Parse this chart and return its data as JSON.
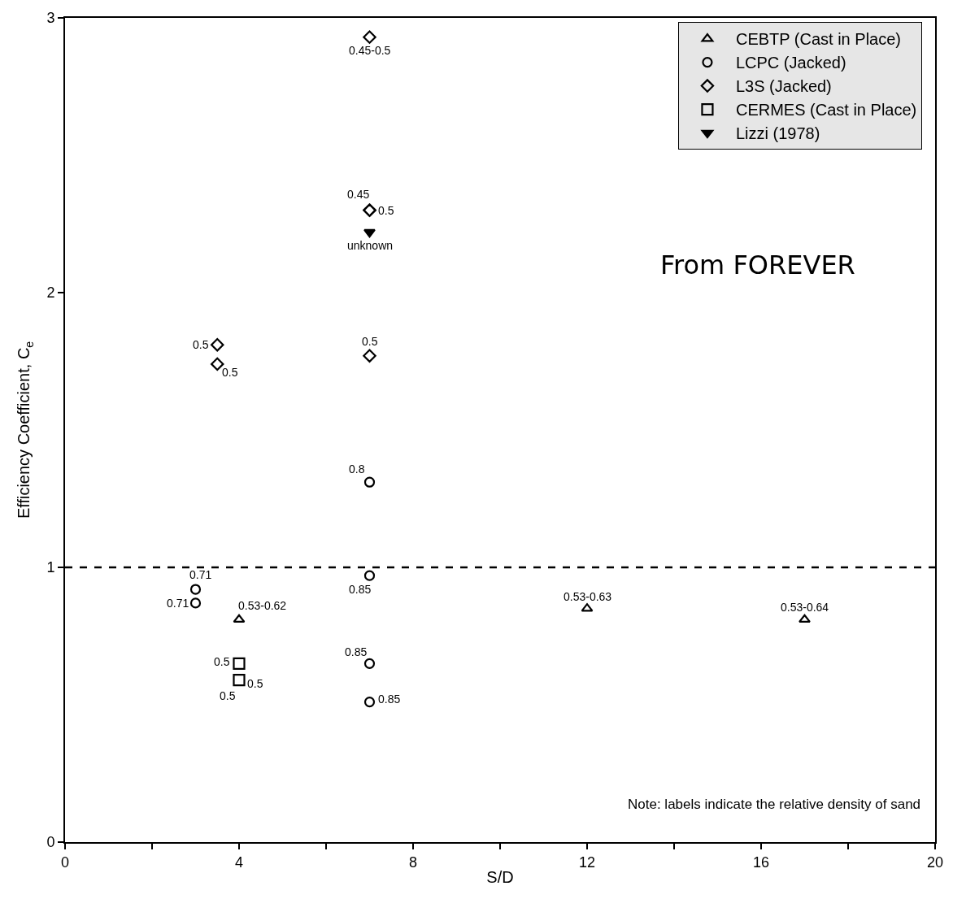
{
  "chart_data": {
    "type": "scatter",
    "xlabel": "S/D",
    "ylabel": "Efficiency Coefficient, C$_{e}$",
    "xlim": [
      0,
      20
    ],
    "ylim": [
      0,
      3
    ],
    "xticks": [
      0,
      {
        "value": 2,
        "label": null
      },
      4,
      {
        "value": 6,
        "label": null
      },
      8,
      {
        "value": 10,
        "label": null
      },
      12,
      {
        "value": 14,
        "label": null
      },
      16,
      {
        "value": 18,
        "label": null
      },
      20
    ],
    "yticks": [
      0,
      1,
      2,
      3
    ],
    "legend": "top right",
    "series": [
      {
        "name": "CEBTP (Cast in Place)",
        "color": "#000000",
        "marker": "triangle",
        "x": [
          4,
          12,
          17
        ],
        "values": [
          0.81,
          0.85,
          0.81
        ]
      },
      {
        "name": "LCPC (Jacked)",
        "color": "#000000",
        "marker": "circle",
        "x": [
          3,
          3,
          7,
          7,
          7,
          7
        ],
        "values": [
          0.92,
          0.87,
          1.31,
          0.97,
          0.65,
          0.51
        ]
      },
      {
        "name": "L3S (Jacked)",
        "color": "#000000",
        "marker": "diamond",
        "x": [
          7,
          7,
          7,
          3.5,
          3.5,
          7
        ],
        "values": [
          2.93,
          2.3,
          2.3,
          1.81,
          1.74,
          1.77
        ]
      },
      {
        "name": "CERMES (Cast in Place)",
        "color": "#000000",
        "marker": "square",
        "x": [
          4,
          4
        ],
        "values": [
          0.65,
          0.59
        ]
      },
      {
        "name": "Lizzi (1978)",
        "color": "#000000",
        "marker": "triangle-down",
        "x": [
          7
        ],
        "values": [
          2.22
        ]
      }
    ],
    "ref_lines": [
      {
        "axis": "y",
        "value": 1,
        "color": "#000000",
        "line_style": "dashed"
      }
    ],
    "annotations": [
      {
        "text": "0.45-0.5",
        "x": 7,
        "y": 2.93
      },
      {
        "text": "0.45",
        "x": 7,
        "y": 2.3
      },
      {
        "text": "0.5",
        "x": 7,
        "y": 2.3
      },
      {
        "text": "unknown",
        "x": 7,
        "y": 2.22
      },
      {
        "text": "0.5",
        "x": 3.5,
        "y": 1.81
      },
      {
        "text": "0.5",
        "x": 3.5,
        "y": 1.74
      },
      {
        "text": "0.5",
        "x": 7,
        "y": 1.77
      },
      {
        "text": "0.8",
        "x": 7,
        "y": 1.31
      },
      {
        "text": "0.71",
        "x": 3,
        "y": 0.92
      },
      {
        "text": "0.71",
        "x": 3,
        "y": 0.87
      },
      {
        "text": "0.53-0.62",
        "x": 4,
        "y": 0.81
      },
      {
        "text": "0.85",
        "x": 7,
        "y": 0.97
      },
      {
        "text": "0.53-0.63",
        "x": 12,
        "y": 0.85
      },
      {
        "text": "0.53-0.64",
        "x": 17,
        "y": 0.81
      },
      {
        "text": "0.85",
        "x": 7,
        "y": 0.65
      },
      {
        "text": "0.5",
        "x": 4,
        "y": 0.65
      },
      {
        "text": "0.5",
        "x": 4,
        "y": 0.59
      },
      {
        "text": "0.5",
        "x": 4,
        "y": 0.59
      },
      {
        "text": "0.85",
        "x": 7,
        "y": 0.51
      },
      "Note: labels indicate the relative density of sand",
      "From FOREVER"
    ]
  }
}
